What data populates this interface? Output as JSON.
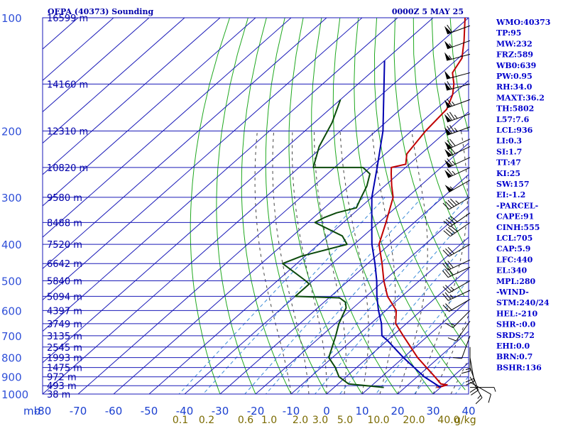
{
  "chart_data": {
    "type": "line",
    "title": "OEPA (40373) Sounding",
    "time_label": "0000Z  5 MAY 25",
    "pressure_unit_label": "mb",
    "mixing_unit_label": "g/kg",
    "pressure_levels": [
      100,
      200,
      300,
      400,
      500,
      600,
      700,
      800,
      900,
      1000
    ],
    "temperature_ticks": [
      -80,
      -70,
      -60,
      -50,
      -40,
      -30,
      -20,
      -10,
      0,
      10,
      20,
      30,
      40
    ],
    "mixing_ratio_labels": [
      "0.1",
      "0.2",
      "0.6",
      "1.0",
      "2.0",
      "3.0",
      "5.0",
      "10.0",
      "20.0",
      "40.0"
    ],
    "height_labels": [
      {
        "p": 100,
        "text": "16599 m"
      },
      {
        "p": 150,
        "text": "14160 m"
      },
      {
        "p": 200,
        "text": "12310 m"
      },
      {
        "p": 250,
        "text": "10820 m"
      },
      {
        "p": 300,
        "text": "9580 m"
      },
      {
        "p": 350,
        "text": "8488 m"
      },
      {
        "p": 400,
        "text": "7520 m"
      },
      {
        "p": 450,
        "text": "6642 m"
      },
      {
        "p": 500,
        "text": "5840 m"
      },
      {
        "p": 550,
        "text": "5094 m"
      },
      {
        "p": 600,
        "text": "4397 m"
      },
      {
        "p": 650,
        "text": "3749 m"
      },
      {
        "p": 700,
        "text": "3135 m"
      },
      {
        "p": 750,
        "text": "2545 m"
      },
      {
        "p": 800,
        "text": "1993 m"
      },
      {
        "p": 850,
        "text": "1475 m"
      },
      {
        "p": 900,
        "text": "972 m"
      },
      {
        "p": 950,
        "text": "493 m"
      },
      {
        "p": 1000,
        "text": "38 m"
      }
    ],
    "series": [
      {
        "key": "temperature",
        "points": [
          [
            100,
            -81
          ],
          [
            115,
            -74
          ],
          [
            128,
            -69
          ],
          [
            140,
            -67
          ],
          [
            150,
            -63
          ],
          [
            160,
            -60
          ],
          [
            175,
            -57
          ],
          [
            200,
            -56
          ],
          [
            230,
            -54
          ],
          [
            245,
            -51
          ],
          [
            250,
            -54
          ],
          [
            260,
            -52
          ],
          [
            280,
            -48
          ],
          [
            300,
            -44
          ],
          [
            350,
            -38
          ],
          [
            400,
            -33
          ],
          [
            450,
            -26
          ],
          [
            500,
            -20
          ],
          [
            550,
            -14
          ],
          [
            600,
            -7
          ],
          [
            650,
            -3
          ],
          [
            700,
            3
          ],
          [
            800,
            14
          ],
          [
            900,
            25
          ],
          [
            940,
            29
          ],
          [
            945,
            31
          ],
          [
            955,
            30
          ],
          [
            960,
            29
          ]
        ]
      },
      {
        "key": "dewpoint",
        "points": [
          [
            165,
            -90
          ],
          [
            190,
            -85
          ],
          [
            220,
            -81
          ],
          [
            250,
            -76
          ],
          [
            250,
            -62
          ],
          [
            260,
            -58
          ],
          [
            280,
            -55
          ],
          [
            300,
            -53
          ],
          [
            320,
            -51
          ],
          [
            330,
            -55
          ],
          [
            340,
            -57
          ],
          [
            350,
            -58
          ],
          [
            380,
            -46
          ],
          [
            400,
            -42
          ],
          [
            430,
            -51
          ],
          [
            450,
            -54
          ],
          [
            500,
            -42
          ],
          [
            510,
            -40
          ],
          [
            550,
            -40
          ],
          [
            555,
            -27
          ],
          [
            570,
            -24
          ],
          [
            590,
            -22
          ],
          [
            650,
            -19
          ],
          [
            700,
            -16
          ],
          [
            800,
            -11
          ],
          [
            850,
            -6
          ],
          [
            900,
            -2
          ],
          [
            940,
            3
          ],
          [
            960,
            14
          ]
        ]
      },
      {
        "key": "parcel",
        "points": [
          [
            130,
            -90
          ],
          [
            200,
            -68
          ],
          [
            250,
            -58
          ],
          [
            300,
            -50
          ],
          [
            350,
            -42
          ],
          [
            400,
            -35
          ],
          [
            450,
            -28
          ],
          [
            500,
            -22
          ],
          [
            550,
            -17
          ],
          [
            600,
            -12
          ],
          [
            650,
            -7
          ],
          [
            700,
            -3
          ],
          [
            720,
            0
          ],
          [
            800,
            10
          ],
          [
            900,
            22
          ],
          [
            960,
            30
          ]
        ]
      }
    ],
    "wind_barbs": [
      {
        "p": 105,
        "dir": 250,
        "spd": 60
      },
      {
        "p": 115,
        "dir": 250,
        "spd": 55
      },
      {
        "p": 125,
        "dir": 255,
        "spd": 55
      },
      {
        "p": 140,
        "dir": 255,
        "spd": 50
      },
      {
        "p": 150,
        "dir": 255,
        "spd": 60
      },
      {
        "p": 165,
        "dir": 250,
        "spd": 65
      },
      {
        "p": 180,
        "dir": 250,
        "spd": 75
      },
      {
        "p": 195,
        "dir": 250,
        "spd": 75
      },
      {
        "p": 210,
        "dir": 245,
        "spd": 70
      },
      {
        "p": 220,
        "dir": 245,
        "spd": 70
      },
      {
        "p": 235,
        "dir": 245,
        "spd": 65
      },
      {
        "p": 250,
        "dir": 245,
        "spd": 65
      },
      {
        "p": 270,
        "dir": 240,
        "spd": 55
      },
      {
        "p": 300,
        "dir": 240,
        "spd": 45
      },
      {
        "p": 330,
        "dir": 235,
        "spd": 40
      },
      {
        "p": 350,
        "dir": 235,
        "spd": 40
      },
      {
        "p": 400,
        "dir": 240,
        "spd": 30
      },
      {
        "p": 440,
        "dir": 245,
        "spd": 30
      },
      {
        "p": 460,
        "dir": 245,
        "spd": 30
      },
      {
        "p": 500,
        "dir": 240,
        "spd": 25
      },
      {
        "p": 530,
        "dir": 245,
        "spd": 25
      },
      {
        "p": 560,
        "dir": 240,
        "spd": 20
      },
      {
        "p": 600,
        "dir": 225,
        "spd": 15
      },
      {
        "p": 640,
        "dir": 215,
        "spd": 10
      },
      {
        "p": 700,
        "dir": 200,
        "spd": 10
      },
      {
        "p": 750,
        "dir": 180,
        "spd": 15
      },
      {
        "p": 800,
        "dir": 170,
        "spd": 20
      },
      {
        "p": 850,
        "dir": 160,
        "spd": 20
      },
      {
        "p": 900,
        "dir": 150,
        "spd": 15
      },
      {
        "p": 930,
        "dir": 120,
        "spd": 10
      },
      {
        "p": 960,
        "dir": 90,
        "spd": 5
      }
    ],
    "indices": [
      "WMO:40373",
      "TP:95",
      "MW:232",
      "FRZ:589",
      "WB0:639",
      "PW:0.95",
      "RH:34.0",
      "MAXT:36.2",
      "TH:5802",
      "L57:7.6",
      "LCL:936",
      "LI:0.3",
      "SI:1.7",
      "TT:47",
      "KI:25",
      "SW:157",
      "EI:-1.2",
      "-PARCEL-",
      "CAPE:91",
      "CINH:555",
      "LCL:705",
      "CAP:5.9",
      "LFC:440",
      "EL:340",
      "MPL:280",
      "-WIND-",
      "STM:240/24",
      "HEL:-210",
      "SHR-:0.0",
      "SRDS:72",
      "EHI:0.0",
      "BRN:0.7",
      "BSHR:136"
    ],
    "colors": {
      "temperature": "#c00000",
      "dewpoint": "#0b4a0b",
      "parcel": "#0000b0",
      "isobar": "#1a1ab8",
      "isotherm": "#1a1ab8",
      "dry_adiabat": "#1fa81f",
      "moist_adiabat": "#444444",
      "mixing_ratio": "#3a8ad8"
    }
  }
}
